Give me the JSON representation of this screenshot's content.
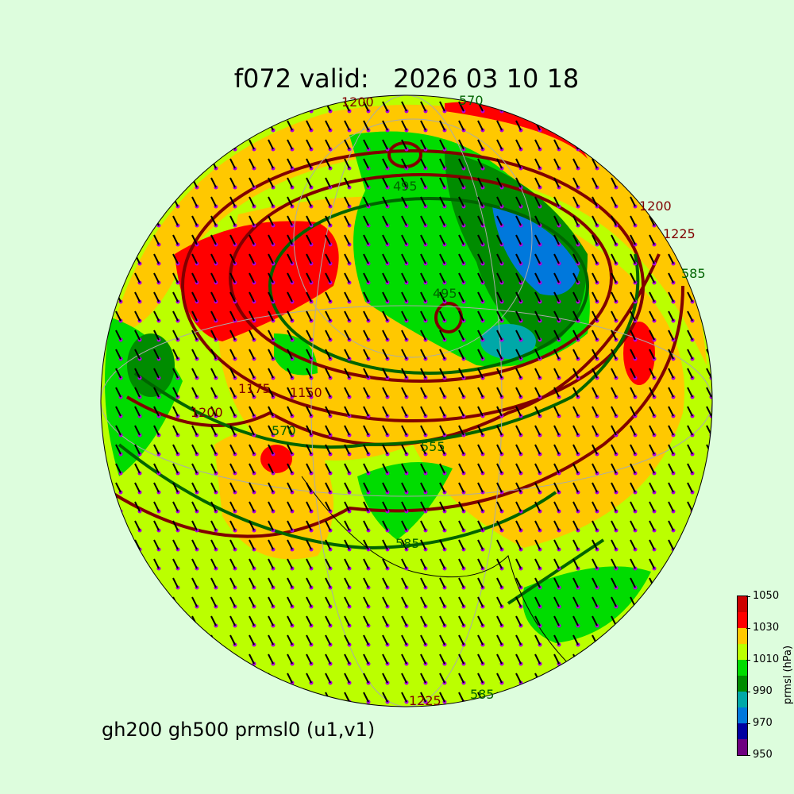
{
  "title": "f072 valid:   2026 03 10 18",
  "subtitle": "gh200 gh500 prmsl0 (u1,v1)",
  "colorbar": {
    "label": "prmsl (hPa)",
    "ticks": [
      "950",
      "970",
      "990",
      "1010",
      "1030",
      "1050"
    ],
    "levels": [
      950,
      960,
      970,
      980,
      990,
      1000,
      1010,
      1020,
      1030,
      1040,
      1050
    ],
    "colors": [
      "#6e0080",
      "#0000a0",
      "#0078dc",
      "#00a8a8",
      "#008c00",
      "#00dc00",
      "#bbff00",
      "#ffc800",
      "#ff0000",
      "#cc0000"
    ]
  },
  "contour_colors": {
    "gh200": "#800000",
    "gh500": "#006400",
    "wind_barbs": "#000000",
    "points": "#b000e0"
  },
  "contour_labels": [
    {
      "text": "1200",
      "series": "gh200"
    },
    {
      "text": "570",
      "series": "gh500"
    },
    {
      "text": "1200",
      "series": "gh200"
    },
    {
      "text": "1225",
      "series": "gh200"
    },
    {
      "text": "585",
      "series": "gh500"
    },
    {
      "text": "495",
      "series": "gh500"
    },
    {
      "text": "495",
      "series": "gh500"
    },
    {
      "text": "1175",
      "series": "gh200"
    },
    {
      "text": "1150",
      "series": "gh200"
    },
    {
      "text": "1200",
      "series": "gh200"
    },
    {
      "text": "570",
      "series": "gh500"
    },
    {
      "text": "555",
      "series": "gh500"
    },
    {
      "text": "585",
      "series": "gh500"
    },
    {
      "text": "1225",
      "series": "gh200"
    },
    {
      "text": "585",
      "series": "gh500"
    }
  ]
}
